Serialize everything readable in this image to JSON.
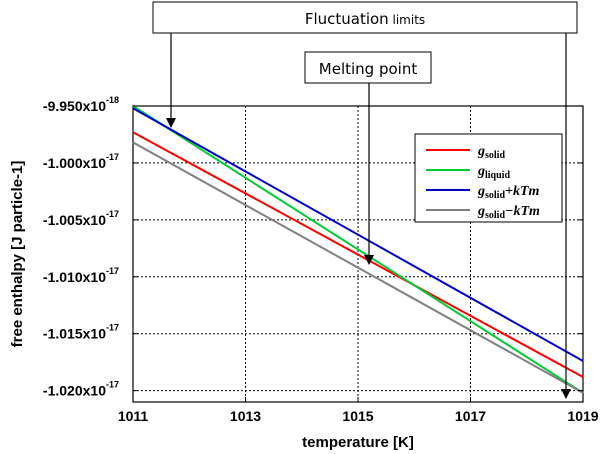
{
  "chart_data": {
    "type": "line",
    "title": "",
    "xlabel": "temperature [K]",
    "ylabel": "free enthalpy [J particle-1]",
    "xlim": [
      1011,
      1019
    ],
    "ylim": [
      -1.021e-17,
      -9.95e-18
    ],
    "x_ticks": [
      1011,
      1013,
      1015,
      1017,
      1019
    ],
    "y_ticks": [
      {
        "value": -9.95e-18,
        "mantissa": "-9.950x10",
        "exp": "-18"
      },
      {
        "value": -1e-17,
        "mantissa": "-1.000x10",
        "exp": "-17"
      },
      {
        "value": -1.005e-17,
        "mantissa": "-1.005x10",
        "exp": "-17"
      },
      {
        "value": -1.01e-17,
        "mantissa": "-1.010x10",
        "exp": "-17"
      },
      {
        "value": -1.015e-17,
        "mantissa": "-1.015x10",
        "exp": "-17"
      },
      {
        "value": -1.02e-17,
        "mantissa": "-1.020x10",
        "exp": "-17"
      }
    ],
    "grid": true,
    "legend_position": "top-right",
    "series": [
      {
        "key": "solid",
        "color": "#ff0000",
        "x": [
          1011,
          1019
        ],
        "y": [
          -9.973e-18,
          -1.0188e-17
        ],
        "legend": {
          "base": "g",
          "sub": "solid",
          "suffix": ""
        }
      },
      {
        "key": "liquid",
        "color": "#00cc33",
        "x": [
          1011,
          1019
        ],
        "y": [
          -9.95e-18,
          -1.0202e-17
        ],
        "legend": {
          "base": "g",
          "sub": "liquid",
          "suffix": ""
        }
      },
      {
        "key": "solid-plus",
        "color": "#0000cc",
        "x": [
          1011,
          1019
        ],
        "y": [
          -9.952e-18,
          -1.0174e-17
        ],
        "legend": {
          "base": "g",
          "sub": "solid",
          "suffix": "+kTm"
        }
      },
      {
        "key": "solid-minus",
        "color": "#808080",
        "x": [
          1011,
          1019
        ],
        "y": [
          -9.982e-18,
          -1.0202e-17
        ],
        "legend": {
          "base": "g",
          "sub": "solid",
          "suffix": "−kTm"
        }
      }
    ],
    "annotations": [
      {
        "key": "fluctuation",
        "text_main": "Fluctuation",
        "text_small": " limits",
        "arrow_targets": [
          {
            "x": 1011.6,
            "y": -9.97e-18
          },
          {
            "x": 1018.8,
            "y": -1.0201e-17
          }
        ]
      },
      {
        "key": "melting",
        "text": "Melting point",
        "arrow_targets": [
          {
            "x": 1015.15,
            "y": -1.0085e-17
          }
        ]
      }
    ]
  }
}
